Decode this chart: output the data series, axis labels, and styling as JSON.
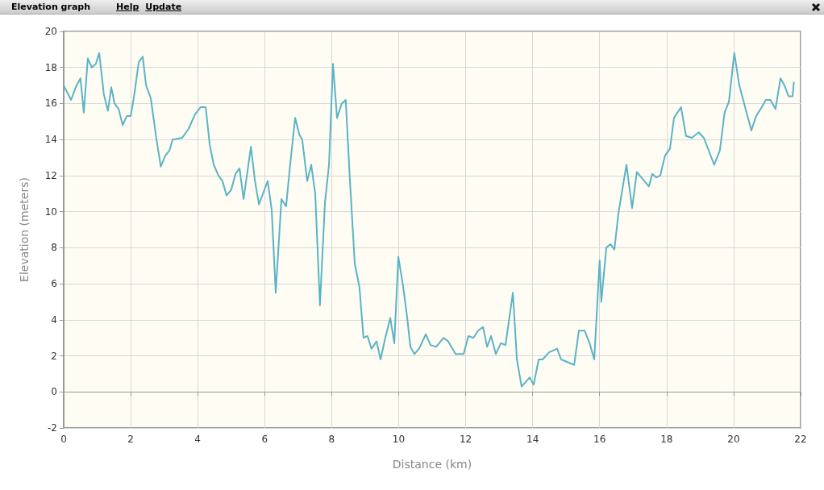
{
  "chart_data": {
    "type": "line",
    "title": "Elevation graph",
    "annotations": [
      "Help",
      "Update"
    ],
    "xlabel": "Distance (km)",
    "ylabel": "Elevation (meters)",
    "xlim": [
      0,
      22
    ],
    "xticks": [
      0,
      2,
      4,
      6,
      8,
      10,
      12,
      14,
      16,
      18,
      20,
      22
    ],
    "ylim": [
      -2,
      20
    ],
    "yticks": [
      -2,
      0,
      2,
      4,
      6,
      8,
      10,
      12,
      14,
      16,
      18,
      20
    ],
    "grid": true,
    "marker": "none",
    "line_style": "solid",
    "series": [
      {
        "color": "#5ab4c5",
        "x": [
          0,
          0.22,
          0.36,
          0.5,
          0.6,
          0.72,
          0.84,
          0.96,
          1.06,
          1.2,
          1.32,
          1.42,
          1.52,
          1.64,
          1.76,
          1.88,
          2.0,
          2.1,
          2.24,
          2.36,
          2.46,
          2.6,
          2.77,
          2.9,
          3.03,
          3.16,
          3.25,
          3.54,
          3.73,
          3.92,
          4.09,
          4.24,
          4.36,
          4.48,
          4.62,
          4.74,
          4.86,
          5.0,
          5.13,
          5.25,
          5.37,
          5.59,
          5.71,
          5.83,
          5.95,
          6.09,
          6.21,
          6.33,
          6.5,
          6.64,
          6.76,
          6.91,
          7.03,
          7.12,
          7.27,
          7.39,
          7.51,
          7.65,
          7.8,
          7.92,
          8.04,
          8.16,
          8.3,
          8.42,
          8.54,
          8.69,
          8.83,
          8.95,
          9.07,
          9.19,
          9.34,
          9.46,
          9.6,
          9.75,
          9.87,
          9.99,
          10.13,
          10.25,
          10.35,
          10.47,
          10.61,
          10.81,
          10.95,
          11.12,
          11.34,
          11.48,
          11.7,
          11.94,
          12.08,
          12.23,
          12.37,
          12.52,
          12.64,
          12.76,
          12.9,
          13.05,
          13.19,
          13.41,
          13.53,
          13.67,
          13.91,
          14.03,
          14.18,
          14.3,
          14.49,
          14.73,
          14.85,
          15.24,
          15.38,
          15.55,
          15.7,
          15.84,
          16.0,
          16.05,
          16.2,
          16.32,
          16.44,
          16.56,
          16.8,
          16.97,
          17.11,
          17.47,
          17.57,
          17.69,
          17.81,
          17.95,
          18.1,
          18.22,
          18.43,
          18.58,
          18.75,
          18.96,
          19.11,
          19.42,
          19.59,
          19.73,
          19.86,
          20.02,
          20.17,
          20.53,
          20.67,
          20.84,
          20.96,
          21.1,
          21.25,
          21.4,
          21.52,
          21.64,
          21.76,
          21.8
        ],
        "values": [
          17.0,
          16.2,
          16.9,
          17.4,
          15.5,
          18.5,
          18.0,
          18.2,
          18.8,
          16.5,
          15.6,
          16.9,
          16.0,
          15.7,
          14.8,
          15.3,
          15.3,
          16.4,
          18.3,
          18.6,
          17.0,
          16.3,
          14.0,
          12.5,
          13.1,
          13.4,
          14.0,
          14.1,
          14.6,
          15.4,
          15.8,
          15.8,
          13.7,
          12.6,
          12.0,
          11.7,
          10.9,
          11.2,
          12.1,
          12.4,
          10.7,
          13.6,
          11.7,
          10.4,
          11.0,
          11.7,
          10.1,
          5.5,
          10.7,
          10.3,
          12.6,
          15.2,
          14.3,
          14.0,
          11.7,
          12.6,
          11.0,
          4.8,
          10.5,
          12.6,
          18.2,
          15.2,
          16.0,
          16.2,
          11.9,
          7.1,
          5.8,
          3.0,
          3.1,
          2.4,
          2.8,
          1.8,
          3.0,
          4.1,
          2.7,
          7.5,
          5.9,
          4.2,
          2.5,
          2.1,
          2.4,
          3.2,
          2.6,
          2.5,
          3.0,
          2.8,
          2.1,
          2.1,
          3.1,
          3.0,
          3.4,
          3.6,
          2.5,
          3.1,
          2.1,
          2.7,
          2.6,
          5.5,
          1.8,
          0.3,
          0.8,
          0.4,
          1.8,
          1.8,
          2.2,
          2.4,
          1.8,
          1.5,
          3.4,
          3.4,
          2.7,
          1.8,
          7.3,
          5.0,
          8.0,
          8.2,
          7.9,
          9.9,
          12.6,
          10.2,
          12.2,
          11.4,
          12.1,
          11.9,
          12.0,
          13.1,
          13.5,
          15.2,
          15.8,
          14.2,
          14.1,
          14.4,
          14.1,
          12.6,
          13.4,
          15.5,
          16.1,
          18.8,
          17.0,
          14.5,
          15.3,
          15.8,
          16.2,
          16.2,
          15.7,
          17.4,
          17.0,
          16.4,
          16.4,
          17.2
        ]
      }
    ]
  }
}
